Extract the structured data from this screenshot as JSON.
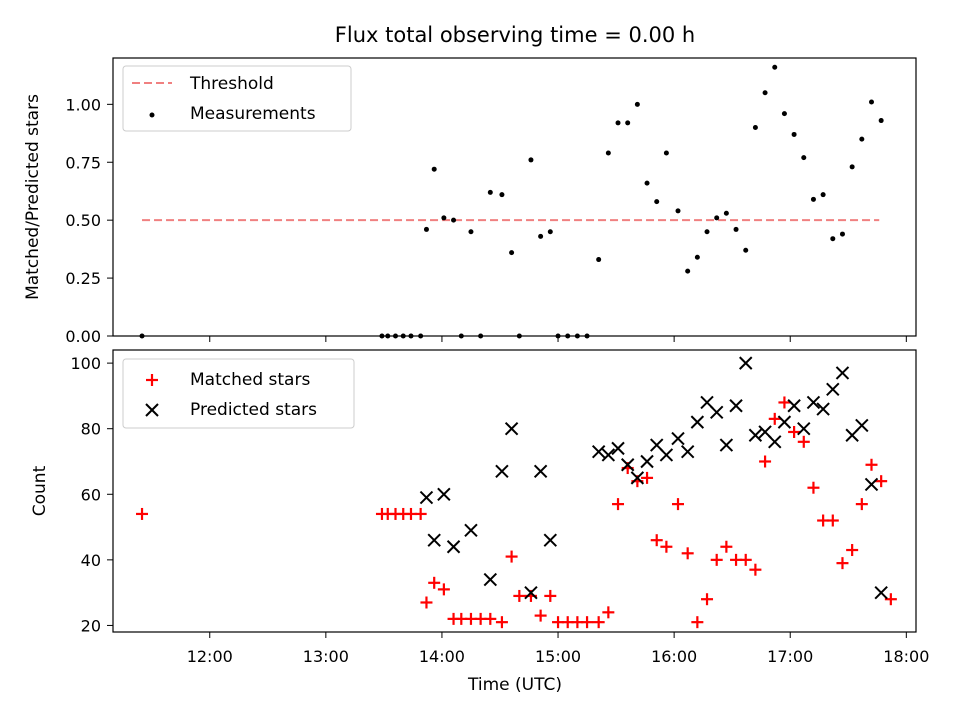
{
  "title": "Flux total observing time = 0.00 h",
  "colors": {
    "threshold": "#f08080",
    "measurement": "#000000",
    "matched": "#ff0000",
    "predicted": "#000000"
  },
  "chart_data": [
    {
      "type": "scatter",
      "ylabel": "Matched/Predicted stars",
      "xlabel": "",
      "xlim": [
        "11:10",
        "18:05"
      ],
      "ylim": [
        0,
        1.2
      ],
      "y_ticks": [
        "0.00",
        "0.25",
        "0.50",
        "0.75",
        "1.00"
      ],
      "grid": false,
      "legend": "top-left",
      "threshold": {
        "name": "Threshold",
        "value": 0.5,
        "x_start": "11:25",
        "x_end": "17:46"
      },
      "series": [
        {
          "name": "Measurements",
          "points": [
            [
              "11:25",
              0.0
            ],
            [
              "13:29",
              0.0
            ],
            [
              "13:32",
              0.0
            ],
            [
              "13:36",
              0.0
            ],
            [
              "13:40",
              0.0
            ],
            [
              "13:44",
              0.0
            ],
            [
              "13:49",
              0.0
            ],
            [
              "13:52",
              0.46
            ],
            [
              "13:56",
              0.72
            ],
            [
              "14:01",
              0.51
            ],
            [
              "14:06",
              0.5
            ],
            [
              "14:10",
              0.0
            ],
            [
              "14:15",
              0.45
            ],
            [
              "14:20",
              0.0
            ],
            [
              "14:25",
              0.62
            ],
            [
              "14:31",
              0.61
            ],
            [
              "14:36",
              0.36
            ],
            [
              "14:40",
              0.0
            ],
            [
              "14:46",
              0.76
            ],
            [
              "14:51",
              0.43
            ],
            [
              "14:56",
              0.45
            ],
            [
              "15:00",
              0.0
            ],
            [
              "15:05",
              0.0
            ],
            [
              "15:10",
              0.0
            ],
            [
              "15:15",
              0.0
            ],
            [
              "15:21",
              0.33
            ],
            [
              "15:26",
              0.79
            ],
            [
              "15:31",
              0.92
            ],
            [
              "15:36",
              0.92
            ],
            [
              "15:41",
              1.0
            ],
            [
              "15:46",
              0.66
            ],
            [
              "15:51",
              0.58
            ],
            [
              "15:56",
              0.79
            ],
            [
              "16:02",
              0.54
            ],
            [
              "16:07",
              0.28
            ],
            [
              "16:12",
              0.34
            ],
            [
              "16:17",
              0.45
            ],
            [
              "16:22",
              0.51
            ],
            [
              "16:27",
              0.53
            ],
            [
              "16:32",
              0.46
            ],
            [
              "16:37",
              0.37
            ],
            [
              "16:42",
              0.9
            ],
            [
              "16:47",
              1.05
            ],
            [
              "16:52",
              1.16
            ],
            [
              "16:57",
              0.96
            ],
            [
              "17:02",
              0.87
            ],
            [
              "17:07",
              0.77
            ],
            [
              "17:12",
              0.59
            ],
            [
              "17:17",
              0.61
            ],
            [
              "17:22",
              0.42
            ],
            [
              "17:27",
              0.44
            ],
            [
              "17:32",
              0.73
            ],
            [
              "17:37",
              0.85
            ],
            [
              "17:42",
              1.01
            ],
            [
              "17:47",
              0.93
            ]
          ]
        }
      ]
    },
    {
      "type": "scatter",
      "ylabel": "Count",
      "xlabel": "Time (UTC)",
      "xlim": [
        "11:10",
        "18:05"
      ],
      "ylim": [
        18,
        104
      ],
      "y_ticks": [
        "20",
        "40",
        "60",
        "80",
        "100"
      ],
      "x_ticks": [
        "12:00",
        "13:00",
        "14:00",
        "15:00",
        "16:00",
        "17:00",
        "18:00"
      ],
      "grid": false,
      "legend": "top-left",
      "series": [
        {
          "name": "Matched stars",
          "marker": "plus",
          "points": [
            [
              "11:25",
              54
            ],
            [
              "13:29",
              54
            ],
            [
              "13:32",
              54
            ],
            [
              "13:36",
              54
            ],
            [
              "13:40",
              54
            ],
            [
              "13:44",
              54
            ],
            [
              "13:49",
              54
            ],
            [
              "13:52",
              27
            ],
            [
              "13:56",
              33
            ],
            [
              "14:01",
              31
            ],
            [
              "14:06",
              22
            ],
            [
              "14:10",
              22
            ],
            [
              "14:15",
              22
            ],
            [
              "14:20",
              22
            ],
            [
              "14:25",
              22
            ],
            [
              "14:31",
              21
            ],
            [
              "14:36",
              41
            ],
            [
              "14:40",
              29
            ],
            [
              "14:46",
              29
            ],
            [
              "14:51",
              23
            ],
            [
              "14:56",
              29
            ],
            [
              "15:00",
              21
            ],
            [
              "15:05",
              21
            ],
            [
              "15:10",
              21
            ],
            [
              "15:15",
              21
            ],
            [
              "15:21",
              21
            ],
            [
              "15:26",
              24
            ],
            [
              "15:31",
              57
            ],
            [
              "15:36",
              68
            ],
            [
              "15:41",
              64
            ],
            [
              "15:46",
              65
            ],
            [
              "15:51",
              46
            ],
            [
              "15:56",
              44
            ],
            [
              "16:02",
              57
            ],
            [
              "16:07",
              42
            ],
            [
              "16:12",
              21
            ],
            [
              "16:17",
              28
            ],
            [
              "16:22",
              40
            ],
            [
              "16:27",
              44
            ],
            [
              "16:32",
              40
            ],
            [
              "16:37",
              40
            ],
            [
              "16:42",
              37
            ],
            [
              "16:47",
              70
            ],
            [
              "16:52",
              83
            ],
            [
              "16:57",
              88
            ],
            [
              "17:02",
              79
            ],
            [
              "17:07",
              76
            ],
            [
              "17:12",
              62
            ],
            [
              "17:17",
              52
            ],
            [
              "17:22",
              52
            ],
            [
              "17:27",
              39
            ],
            [
              "17:32",
              43
            ],
            [
              "17:37",
              57
            ],
            [
              "17:42",
              69
            ],
            [
              "17:47",
              64
            ],
            [
              "17:52",
              28
            ]
          ]
        },
        {
          "name": "Predicted stars",
          "marker": "x",
          "points": [
            [
              "13:52",
              59
            ],
            [
              "13:56",
              46
            ],
            [
              "14:01",
              60
            ],
            [
              "14:06",
              44
            ],
            [
              "14:15",
              49
            ],
            [
              "14:25",
              34
            ],
            [
              "14:31",
              67
            ],
            [
              "14:36",
              80
            ],
            [
              "14:46",
              30
            ],
            [
              "14:51",
              67
            ],
            [
              "14:56",
              46
            ],
            [
              "15:21",
              73
            ],
            [
              "15:26",
              72
            ],
            [
              "15:31",
              74
            ],
            [
              "15:36",
              69
            ],
            [
              "15:41",
              65
            ],
            [
              "15:46",
              70
            ],
            [
              "15:51",
              75
            ],
            [
              "15:56",
              72
            ],
            [
              "16:02",
              77
            ],
            [
              "16:07",
              73
            ],
            [
              "16:12",
              82
            ],
            [
              "16:17",
              88
            ],
            [
              "16:22",
              85
            ],
            [
              "16:27",
              75
            ],
            [
              "16:32",
              87
            ],
            [
              "16:37",
              100
            ],
            [
              "16:42",
              78
            ],
            [
              "16:47",
              79
            ],
            [
              "16:52",
              76
            ],
            [
              "16:57",
              82
            ],
            [
              "17:02",
              87
            ],
            [
              "17:07",
              80
            ],
            [
              "17:12",
              88
            ],
            [
              "17:17",
              86
            ],
            [
              "17:22",
              92
            ],
            [
              "17:27",
              97
            ],
            [
              "17:32",
              78
            ],
            [
              "17:37",
              81
            ],
            [
              "17:42",
              63
            ],
            [
              "17:47",
              30
            ]
          ]
        }
      ]
    }
  ]
}
